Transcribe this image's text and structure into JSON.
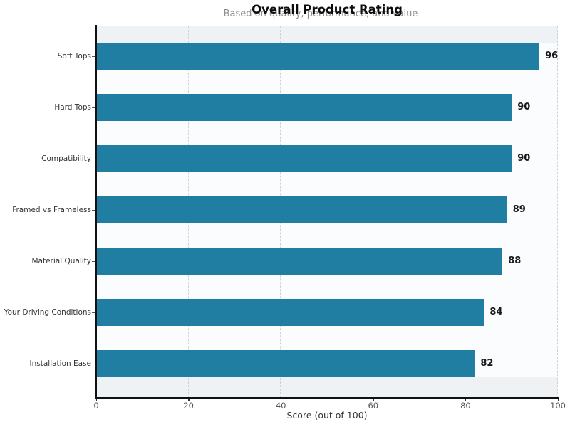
{
  "header": {
    "title": "Overall Product Rating",
    "subtitle": "Based on quality, performance, and value"
  },
  "chart_data": {
    "type": "bar",
    "orientation": "horizontal",
    "title": "Overall Product Rating",
    "subtitle": "Based on quality, performance, and value",
    "categories": [
      "Soft Tops",
      "Hard Tops",
      "Compatibility",
      "Framed vs Frameless",
      "Material Quality",
      "Your Driving Conditions",
      "Installation Ease"
    ],
    "values": [
      96,
      90,
      90,
      89,
      88,
      84,
      82
    ],
    "value_labels": [
      "96",
      "90",
      "90",
      "89",
      "88",
      "84",
      "82"
    ],
    "xlabel": "Score (out of 100)",
    "ylabel": "",
    "xlim": [
      0,
      100
    ],
    "xticks": [
      0,
      20,
      40,
      60,
      80,
      100
    ],
    "xtick_labels": [
      "0",
      "20",
      "40",
      "60",
      "80",
      "100"
    ],
    "grid": "vertical-dashed",
    "legend": "none",
    "colors": {
      "bar": "#1f7ea1",
      "plot_background": "#eef2f4",
      "bar_band_background": "#fafcfd",
      "gridline": "#ccd2d6",
      "axis_spine": "#111111",
      "tick_label": "#555555",
      "category_label": "#333333",
      "value_label": "#1a1a1a",
      "title": "#0d0d0d",
      "subtitle": "#8f8f8f"
    }
  }
}
